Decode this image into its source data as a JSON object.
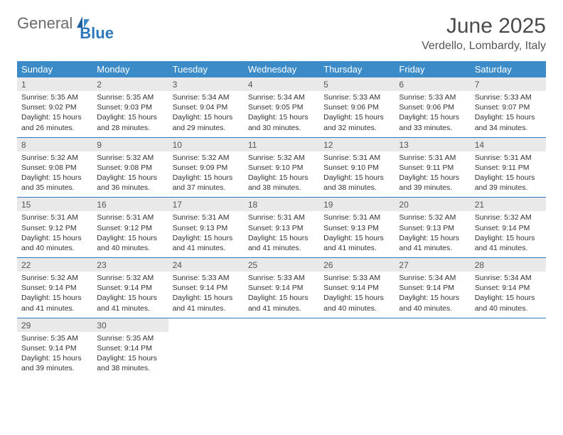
{
  "logo": {
    "text1": "General",
    "text2": "Blue"
  },
  "header": {
    "title": "June 2025",
    "location": "Verdello, Lombardy, Italy"
  },
  "style": {
    "header_bg": "#3b8bc9",
    "header_fg": "#ffffff",
    "daynum_bg": "#e9e9e9",
    "rule_color": "#2f78bd",
    "text_color": "#333333",
    "title_fontsize": 30,
    "location_fontsize": 16,
    "body_fontsize": 10.5
  },
  "weekdays": [
    "Sunday",
    "Monday",
    "Tuesday",
    "Wednesday",
    "Thursday",
    "Friday",
    "Saturday"
  ],
  "weeks": [
    [
      {
        "n": "1",
        "sr": "Sunrise: 5:35 AM",
        "ss": "Sunset: 9:02 PM",
        "d1": "Daylight: 15 hours",
        "d2": "and 26 minutes."
      },
      {
        "n": "2",
        "sr": "Sunrise: 5:35 AM",
        "ss": "Sunset: 9:03 PM",
        "d1": "Daylight: 15 hours",
        "d2": "and 28 minutes."
      },
      {
        "n": "3",
        "sr": "Sunrise: 5:34 AM",
        "ss": "Sunset: 9:04 PM",
        "d1": "Daylight: 15 hours",
        "d2": "and 29 minutes."
      },
      {
        "n": "4",
        "sr": "Sunrise: 5:34 AM",
        "ss": "Sunset: 9:05 PM",
        "d1": "Daylight: 15 hours",
        "d2": "and 30 minutes."
      },
      {
        "n": "5",
        "sr": "Sunrise: 5:33 AM",
        "ss": "Sunset: 9:06 PM",
        "d1": "Daylight: 15 hours",
        "d2": "and 32 minutes."
      },
      {
        "n": "6",
        "sr": "Sunrise: 5:33 AM",
        "ss": "Sunset: 9:06 PM",
        "d1": "Daylight: 15 hours",
        "d2": "and 33 minutes."
      },
      {
        "n": "7",
        "sr": "Sunrise: 5:33 AM",
        "ss": "Sunset: 9:07 PM",
        "d1": "Daylight: 15 hours",
        "d2": "and 34 minutes."
      }
    ],
    [
      {
        "n": "8",
        "sr": "Sunrise: 5:32 AM",
        "ss": "Sunset: 9:08 PM",
        "d1": "Daylight: 15 hours",
        "d2": "and 35 minutes."
      },
      {
        "n": "9",
        "sr": "Sunrise: 5:32 AM",
        "ss": "Sunset: 9:08 PM",
        "d1": "Daylight: 15 hours",
        "d2": "and 36 minutes."
      },
      {
        "n": "10",
        "sr": "Sunrise: 5:32 AM",
        "ss": "Sunset: 9:09 PM",
        "d1": "Daylight: 15 hours",
        "d2": "and 37 minutes."
      },
      {
        "n": "11",
        "sr": "Sunrise: 5:32 AM",
        "ss": "Sunset: 9:10 PM",
        "d1": "Daylight: 15 hours",
        "d2": "and 38 minutes."
      },
      {
        "n": "12",
        "sr": "Sunrise: 5:31 AM",
        "ss": "Sunset: 9:10 PM",
        "d1": "Daylight: 15 hours",
        "d2": "and 38 minutes."
      },
      {
        "n": "13",
        "sr": "Sunrise: 5:31 AM",
        "ss": "Sunset: 9:11 PM",
        "d1": "Daylight: 15 hours",
        "d2": "and 39 minutes."
      },
      {
        "n": "14",
        "sr": "Sunrise: 5:31 AM",
        "ss": "Sunset: 9:11 PM",
        "d1": "Daylight: 15 hours",
        "d2": "and 39 minutes."
      }
    ],
    [
      {
        "n": "15",
        "sr": "Sunrise: 5:31 AM",
        "ss": "Sunset: 9:12 PM",
        "d1": "Daylight: 15 hours",
        "d2": "and 40 minutes."
      },
      {
        "n": "16",
        "sr": "Sunrise: 5:31 AM",
        "ss": "Sunset: 9:12 PM",
        "d1": "Daylight: 15 hours",
        "d2": "and 40 minutes."
      },
      {
        "n": "17",
        "sr": "Sunrise: 5:31 AM",
        "ss": "Sunset: 9:13 PM",
        "d1": "Daylight: 15 hours",
        "d2": "and 41 minutes."
      },
      {
        "n": "18",
        "sr": "Sunrise: 5:31 AM",
        "ss": "Sunset: 9:13 PM",
        "d1": "Daylight: 15 hours",
        "d2": "and 41 minutes."
      },
      {
        "n": "19",
        "sr": "Sunrise: 5:31 AM",
        "ss": "Sunset: 9:13 PM",
        "d1": "Daylight: 15 hours",
        "d2": "and 41 minutes."
      },
      {
        "n": "20",
        "sr": "Sunrise: 5:32 AM",
        "ss": "Sunset: 9:13 PM",
        "d1": "Daylight: 15 hours",
        "d2": "and 41 minutes."
      },
      {
        "n": "21",
        "sr": "Sunrise: 5:32 AM",
        "ss": "Sunset: 9:14 PM",
        "d1": "Daylight: 15 hours",
        "d2": "and 41 minutes."
      }
    ],
    [
      {
        "n": "22",
        "sr": "Sunrise: 5:32 AM",
        "ss": "Sunset: 9:14 PM",
        "d1": "Daylight: 15 hours",
        "d2": "and 41 minutes."
      },
      {
        "n": "23",
        "sr": "Sunrise: 5:32 AM",
        "ss": "Sunset: 9:14 PM",
        "d1": "Daylight: 15 hours",
        "d2": "and 41 minutes."
      },
      {
        "n": "24",
        "sr": "Sunrise: 5:33 AM",
        "ss": "Sunset: 9:14 PM",
        "d1": "Daylight: 15 hours",
        "d2": "and 41 minutes."
      },
      {
        "n": "25",
        "sr": "Sunrise: 5:33 AM",
        "ss": "Sunset: 9:14 PM",
        "d1": "Daylight: 15 hours",
        "d2": "and 41 minutes."
      },
      {
        "n": "26",
        "sr": "Sunrise: 5:33 AM",
        "ss": "Sunset: 9:14 PM",
        "d1": "Daylight: 15 hours",
        "d2": "and 40 minutes."
      },
      {
        "n": "27",
        "sr": "Sunrise: 5:34 AM",
        "ss": "Sunset: 9:14 PM",
        "d1": "Daylight: 15 hours",
        "d2": "and 40 minutes."
      },
      {
        "n": "28",
        "sr": "Sunrise: 5:34 AM",
        "ss": "Sunset: 9:14 PM",
        "d1": "Daylight: 15 hours",
        "d2": "and 40 minutes."
      }
    ],
    [
      {
        "n": "29",
        "sr": "Sunrise: 5:35 AM",
        "ss": "Sunset: 9:14 PM",
        "d1": "Daylight: 15 hours",
        "d2": "and 39 minutes."
      },
      {
        "n": "30",
        "sr": "Sunrise: 5:35 AM",
        "ss": "Sunset: 9:14 PM",
        "d1": "Daylight: 15 hours",
        "d2": "and 38 minutes."
      },
      null,
      null,
      null,
      null,
      null
    ]
  ]
}
